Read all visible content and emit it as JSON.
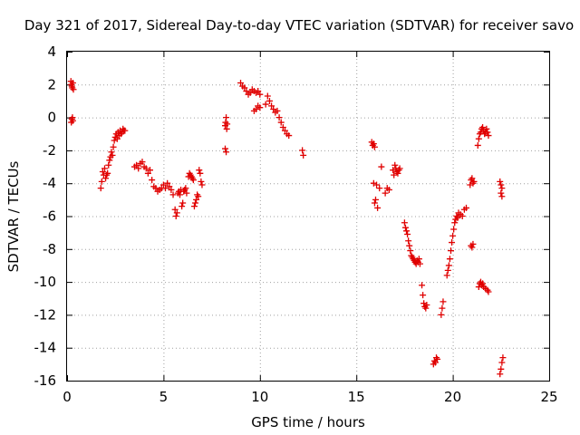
{
  "chart_data": {
    "type": "scatter",
    "title": "Day 321 of 2017, Sidereal Day-to-day VTEC variation (SDTVAR) for receiver savo",
    "xlabel": "GPS time / hours",
    "ylabel": "SDTVAR / TECUs",
    "xlim": [
      0,
      25
    ],
    "ylim": [
      -16,
      4
    ],
    "xticks": [
      0,
      5,
      10,
      15,
      20,
      25
    ],
    "yticks": [
      4,
      2,
      0,
      -2,
      -4,
      -6,
      -8,
      -10,
      -12,
      -14,
      -16
    ],
    "grid": true,
    "marker": "+",
    "color": "#e00000",
    "series": [
      {
        "name": "SDTVAR",
        "x": [
          0.2,
          0.22,
          0.25,
          0.27,
          0.3,
          0.33,
          0.22,
          0.25,
          0.28,
          0.3,
          1.75,
          1.8,
          1.85,
          1.9,
          1.95,
          2.0,
          2.05,
          2.1,
          2.15,
          2.2,
          2.25,
          2.3,
          2.35,
          2.4,
          2.45,
          2.5,
          2.55,
          2.6,
          2.65,
          2.7,
          2.75,
          2.8,
          2.85,
          2.9,
          2.95,
          3.0,
          3.5,
          3.6,
          3.7,
          3.8,
          3.9,
          4.0,
          4.1,
          4.2,
          4.3,
          4.4,
          4.5,
          4.6,
          4.7,
          4.8,
          4.9,
          5.0,
          5.1,
          5.2,
          5.3,
          5.4,
          5.5,
          5.6,
          5.65,
          5.7,
          5.75,
          5.8,
          5.85,
          5.9,
          5.95,
          6.0,
          6.05,
          6.1,
          6.15,
          6.2,
          6.3,
          6.35,
          6.4,
          6.45,
          6.5,
          6.55,
          6.6,
          6.65,
          6.7,
          6.75,
          6.8,
          6.85,
          6.9,
          6.95,
          7.0,
          8.2,
          8.22,
          8.25,
          8.28,
          8.3,
          8.2,
          8.25,
          9.0,
          9.1,
          9.2,
          9.3,
          9.4,
          9.5,
          9.6,
          9.7,
          9.8,
          9.9,
          10.0,
          9.7,
          9.8,
          9.9,
          10.0,
          10.3,
          10.4,
          10.5,
          10.6,
          10.7,
          10.8,
          10.9,
          11.0,
          11.1,
          11.2,
          11.3,
          11.4,
          11.5,
          12.2,
          12.25,
          15.8,
          15.85,
          15.9,
          15.95,
          15.9,
          15.95,
          16.0,
          16.05,
          16.1,
          16.2,
          16.3,
          16.5,
          16.6,
          16.7,
          16.9,
          16.95,
          17.0,
          17.05,
          17.1,
          17.15,
          17.2,
          17.25,
          17.5,
          17.55,
          17.6,
          17.65,
          17.7,
          17.75,
          17.8,
          17.85,
          17.9,
          17.95,
          18.0,
          18.05,
          18.1,
          18.15,
          18.2,
          18.25,
          18.3,
          18.4,
          18.45,
          18.5,
          18.55,
          18.6,
          18.65,
          19.0,
          19.05,
          19.1,
          19.15,
          19.2,
          19.4,
          19.45,
          19.5,
          19.7,
          19.75,
          19.8,
          19.85,
          19.9,
          19.95,
          20.0,
          20.05,
          20.1,
          20.15,
          20.2,
          20.25,
          20.3,
          20.4,
          20.5,
          20.6,
          20.7,
          20.9,
          20.95,
          21.0,
          21.05,
          21.1,
          20.95,
          21.0,
          21.05,
          21.3,
          21.35,
          21.4,
          21.45,
          21.5,
          21.55,
          21.6,
          21.65,
          21.7,
          21.75,
          21.8,
          21.85,
          21.35,
          21.4,
          21.45,
          21.5,
          21.55,
          21.6,
          21.7,
          21.8,
          21.85,
          22.45,
          22.5,
          22.55,
          22.6,
          22.45,
          22.5,
          22.55,
          22.5,
          22.55
        ],
        "y": [
          2.2,
          2.0,
          1.9,
          1.8,
          2.1,
          1.7,
          -0.3,
          -0.1,
          0.0,
          -0.2,
          -4.3,
          -3.9,
          -3.3,
          -3.5,
          -3.1,
          -3.7,
          -3.5,
          -3.4,
          -2.9,
          -2.6,
          -2.4,
          -2.1,
          -2.3,
          -1.8,
          -1.4,
          -1.2,
          -1.0,
          -1.3,
          -0.9,
          -1.1,
          -0.8,
          -1.0,
          -0.9,
          -0.7,
          -0.8,
          -0.8,
          -3.0,
          -2.9,
          -3.1,
          -2.8,
          -2.7,
          -3.0,
          -3.1,
          -3.4,
          -3.2,
          -3.8,
          -4.2,
          -4.3,
          -4.5,
          -4.4,
          -4.3,
          -4.1,
          -4.3,
          -4.0,
          -4.2,
          -4.4,
          -4.7,
          -5.6,
          -6.0,
          -5.8,
          -4.6,
          -4.5,
          -4.7,
          -4.4,
          -5.4,
          -5.2,
          -4.5,
          -4.4,
          -4.3,
          -4.6,
          -3.6,
          -3.4,
          -3.5,
          -3.6,
          -3.7,
          -3.8,
          -5.4,
          -5.2,
          -5.0,
          -4.7,
          -4.8,
          -3.2,
          -3.4,
          -3.9,
          -4.1,
          -0.5,
          -0.3,
          0.0,
          -0.7,
          -0.4,
          -1.9,
          -2.1,
          2.1,
          1.9,
          1.8,
          1.6,
          1.4,
          1.5,
          1.7,
          1.6,
          1.5,
          1.6,
          1.4,
          0.4,
          0.5,
          0.7,
          0.6,
          0.8,
          1.3,
          1.0,
          0.7,
          0.5,
          0.3,
          0.4,
          0.0,
          -0.3,
          -0.6,
          -0.8,
          -1.0,
          -1.1,
          -2.0,
          -2.3,
          -1.5,
          -1.7,
          -1.6,
          -1.8,
          -4.0,
          -5.2,
          -5.0,
          -4.1,
          -5.5,
          -4.3,
          -3.0,
          -4.6,
          -4.3,
          -4.4,
          -3.2,
          -3.5,
          -2.9,
          -3.1,
          -3.3,
          -3.4,
          -3.2,
          -3.1,
          -6.4,
          -6.7,
          -6.9,
          -7.1,
          -7.5,
          -7.8,
          -8.1,
          -8.4,
          -8.5,
          -8.6,
          -8.7,
          -8.8,
          -8.9,
          -8.7,
          -8.8,
          -8.6,
          -8.9,
          -10.2,
          -10.8,
          -11.3,
          -11.5,
          -11.6,
          -11.4,
          -15.0,
          -14.8,
          -14.9,
          -14.6,
          -14.7,
          -12.0,
          -11.6,
          -11.2,
          -9.6,
          -9.3,
          -9.0,
          -8.6,
          -8.1,
          -7.6,
          -7.2,
          -6.8,
          -6.4,
          -6.2,
          -6.0,
          -6.1,
          -5.8,
          -5.9,
          -6.0,
          -5.6,
          -5.5,
          -4.1,
          -3.8,
          -3.7,
          -4.0,
          -3.9,
          -7.8,
          -7.9,
          -7.7,
          -1.7,
          -1.3,
          -1.0,
          -0.9,
          -0.7,
          -0.6,
          -0.8,
          -1.0,
          -0.9,
          -0.7,
          -0.9,
          -1.1,
          -10.3,
          -10.1,
          -10.0,
          -10.2,
          -10.1,
          -10.3,
          -10.4,
          -10.5,
          -10.6,
          -15.6,
          -15.3,
          -14.9,
          -14.6,
          -3.9,
          -4.1,
          -4.3,
          -4.6,
          -4.8
        ]
      }
    ]
  }
}
